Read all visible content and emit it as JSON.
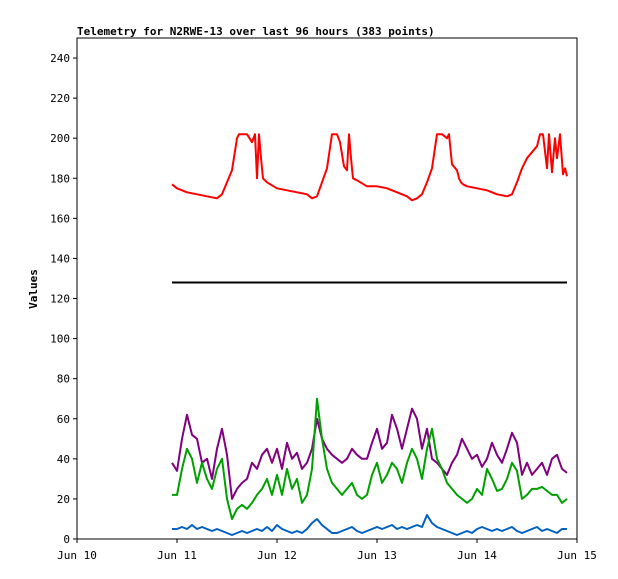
{
  "chart_data": {
    "type": "line",
    "title": "Telemetry for N2RWE-13 over last 96 hours (383 points)",
    "ylabel": "Values",
    "xlabel": "",
    "ylim": [
      0,
      250
    ],
    "xlim": [
      0,
      5
    ],
    "yticks": [
      0,
      20,
      40,
      60,
      80,
      100,
      120,
      140,
      160,
      180,
      200,
      220,
      240
    ],
    "xticks": [
      {
        "v": 0,
        "label": "Jun 10"
      },
      {
        "v": 1,
        "label": "Jun 11"
      },
      {
        "v": 2,
        "label": "Jun 12"
      },
      {
        "v": 3,
        "label": "Jun 13"
      },
      {
        "v": 4,
        "label": "Jun 14"
      },
      {
        "v": 5,
        "label": "Jun 15"
      }
    ],
    "grid": false,
    "legend": "none",
    "series": [
      {
        "color": "#ff0000",
        "x": [
          0.95,
          1.0,
          1.1,
          1.2,
          1.3,
          1.4,
          1.45,
          1.5,
          1.55,
          1.6,
          1.62,
          1.65,
          1.7,
          1.75,
          1.78,
          1.8,
          1.82,
          1.84,
          1.86,
          1.9,
          2.0,
          2.1,
          2.2,
          2.3,
          2.35,
          2.4,
          2.45,
          2.5,
          2.55,
          2.6,
          2.63,
          2.67,
          2.7,
          2.72,
          2.74,
          2.76,
          2.8,
          2.9,
          3.0,
          3.1,
          3.2,
          3.3,
          3.35,
          3.4,
          3.45,
          3.5,
          3.55,
          3.6,
          3.65,
          3.7,
          3.72,
          3.75,
          3.8,
          3.82,
          3.84,
          3.86,
          3.9,
          4.0,
          4.1,
          4.2,
          4.3,
          4.35,
          4.4,
          4.45,
          4.5,
          4.55,
          4.6,
          4.63,
          4.66,
          4.7,
          4.72,
          4.75,
          4.78,
          4.8,
          4.83,
          4.86,
          4.88,
          4.9
        ],
        "y": [
          177,
          175,
          173,
          172,
          171,
          170,
          172,
          178,
          184,
          200,
          202,
          202,
          202,
          198,
          202,
          180,
          202,
          190,
          180,
          178,
          175,
          174,
          173,
          172,
          170,
          171,
          178,
          185,
          202,
          202,
          198,
          186,
          184,
          202,
          190,
          180,
          179,
          176,
          176,
          175,
          173,
          171,
          169,
          170,
          172,
          178,
          185,
          202,
          202,
          200,
          202,
          187,
          184,
          180,
          178,
          177,
          176,
          175,
          174,
          172,
          171,
          172,
          178,
          185,
          190,
          193,
          196,
          202,
          202,
          185,
          202,
          183,
          200,
          190,
          202,
          182,
          185,
          181
        ]
      },
      {
        "color": "#000000",
        "x": [
          0.95,
          4.9
        ],
        "y": [
          128,
          128
        ]
      },
      {
        "color": "#800080",
        "x": [
          0.95,
          1.0,
          1.05,
          1.1,
          1.15,
          1.2,
          1.25,
          1.3,
          1.35,
          1.4,
          1.45,
          1.5,
          1.55,
          1.6,
          1.65,
          1.7,
          1.75,
          1.8,
          1.85,
          1.9,
          1.95,
          2.0,
          2.05,
          2.1,
          2.15,
          2.2,
          2.25,
          2.3,
          2.35,
          2.4,
          2.45,
          2.5,
          2.55,
          2.6,
          2.65,
          2.7,
          2.75,
          2.8,
          2.85,
          2.9,
          2.95,
          3.0,
          3.05,
          3.1,
          3.15,
          3.2,
          3.25,
          3.3,
          3.35,
          3.4,
          3.45,
          3.5,
          3.55,
          3.6,
          3.65,
          3.7,
          3.75,
          3.8,
          3.85,
          3.9,
          3.95,
          4.0,
          4.05,
          4.1,
          4.15,
          4.2,
          4.25,
          4.3,
          4.35,
          4.4,
          4.45,
          4.5,
          4.55,
          4.6,
          4.65,
          4.7,
          4.75,
          4.8,
          4.85,
          4.9
        ],
        "y": [
          38,
          34,
          50,
          62,
          52,
          50,
          38,
          40,
          30,
          45,
          55,
          42,
          20,
          25,
          28,
          30,
          38,
          35,
          42,
          45,
          38,
          45,
          35,
          48,
          40,
          43,
          35,
          38,
          45,
          60,
          50,
          45,
          42,
          40,
          38,
          40,
          45,
          42,
          40,
          40,
          48,
          55,
          45,
          48,
          62,
          55,
          45,
          55,
          65,
          60,
          45,
          55,
          40,
          38,
          35,
          32,
          38,
          42,
          50,
          45,
          40,
          42,
          36,
          40,
          48,
          42,
          38,
          45,
          53,
          48,
          32,
          38,
          32,
          35,
          38,
          32,
          40,
          42,
          35,
          33
        ]
      },
      {
        "color": "#00a000",
        "x": [
          0.95,
          1.0,
          1.05,
          1.1,
          1.15,
          1.2,
          1.25,
          1.3,
          1.35,
          1.4,
          1.45,
          1.5,
          1.55,
          1.6,
          1.65,
          1.7,
          1.75,
          1.8,
          1.85,
          1.9,
          1.95,
          2.0,
          2.05,
          2.1,
          2.15,
          2.2,
          2.25,
          2.3,
          2.35,
          2.4,
          2.45,
          2.5,
          2.55,
          2.6,
          2.65,
          2.7,
          2.75,
          2.8,
          2.85,
          2.9,
          2.95,
          3.0,
          3.05,
          3.1,
          3.15,
          3.2,
          3.25,
          3.3,
          3.35,
          3.4,
          3.45,
          3.5,
          3.55,
          3.6,
          3.65,
          3.7,
          3.75,
          3.8,
          3.85,
          3.9,
          3.95,
          4.0,
          4.05,
          4.1,
          4.15,
          4.2,
          4.25,
          4.3,
          4.35,
          4.4,
          4.45,
          4.5,
          4.55,
          4.6,
          4.65,
          4.7,
          4.75,
          4.8,
          4.85,
          4.9
        ],
        "y": [
          22,
          22,
          35,
          45,
          40,
          28,
          38,
          30,
          25,
          35,
          40,
          20,
          10,
          15,
          17,
          15,
          18,
          22,
          25,
          30,
          22,
          32,
          22,
          35,
          25,
          30,
          18,
          22,
          35,
          70,
          50,
          35,
          28,
          25,
          22,
          25,
          28,
          22,
          20,
          22,
          32,
          38,
          28,
          32,
          38,
          35,
          28,
          38,
          45,
          40,
          30,
          45,
          55,
          40,
          35,
          28,
          25,
          22,
          20,
          18,
          20,
          25,
          22,
          35,
          30,
          24,
          25,
          30,
          38,
          34,
          20,
          22,
          25,
          25,
          26,
          24,
          22,
          22,
          18,
          20
        ]
      },
      {
        "color": "#0060c0",
        "x": [
          0.95,
          1.0,
          1.05,
          1.1,
          1.15,
          1.2,
          1.25,
          1.3,
          1.35,
          1.4,
          1.45,
          1.5,
          1.55,
          1.6,
          1.65,
          1.7,
          1.75,
          1.8,
          1.85,
          1.9,
          1.95,
          2.0,
          2.05,
          2.1,
          2.15,
          2.2,
          2.25,
          2.3,
          2.35,
          2.4,
          2.45,
          2.5,
          2.55,
          2.6,
          2.65,
          2.7,
          2.75,
          2.8,
          2.85,
          2.9,
          2.95,
          3.0,
          3.05,
          3.1,
          3.15,
          3.2,
          3.25,
          3.3,
          3.35,
          3.4,
          3.45,
          3.5,
          3.55,
          3.6,
          3.65,
          3.7,
          3.75,
          3.8,
          3.85,
          3.9,
          3.95,
          4.0,
          4.05,
          4.1,
          4.15,
          4.2,
          4.25,
          4.3,
          4.35,
          4.4,
          4.45,
          4.5,
          4.55,
          4.6,
          4.65,
          4.7,
          4.75,
          4.8,
          4.85,
          4.9
        ],
        "y": [
          5,
          5,
          6,
          5,
          7,
          5,
          6,
          5,
          4,
          5,
          4,
          3,
          2,
          3,
          4,
          3,
          4,
          5,
          4,
          6,
          4,
          7,
          5,
          4,
          3,
          4,
          3,
          5,
          8,
          10,
          7,
          5,
          3,
          3,
          4,
          5,
          6,
          4,
          3,
          4,
          5,
          6,
          5,
          6,
          7,
          5,
          6,
          5,
          6,
          7,
          6,
          12,
          8,
          6,
          5,
          4,
          3,
          2,
          3,
          4,
          3,
          5,
          6,
          5,
          4,
          5,
          4,
          5,
          6,
          4,
          3,
          4,
          5,
          6,
          4,
          5,
          4,
          3,
          5,
          5
        ]
      }
    ]
  }
}
